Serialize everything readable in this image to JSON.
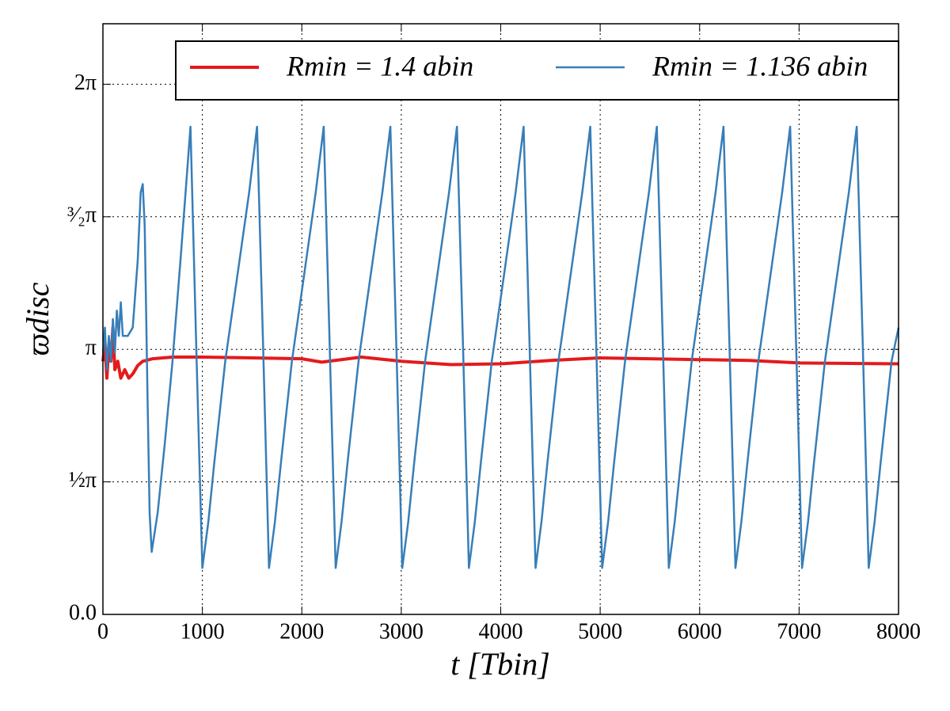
{
  "chart_data": {
    "type": "line",
    "xlabel": "t [Tbin]",
    "ylabel": "ϖdisc",
    "xlim": [
      0,
      8000
    ],
    "ylim": [
      0,
      7.0
    ],
    "xticks": [
      0,
      1000,
      2000,
      3000,
      4000,
      5000,
      6000,
      7000,
      8000
    ],
    "yticks": [
      {
        "value": 0,
        "label": "0.0"
      },
      {
        "value": 1.5708,
        "label": "½π"
      },
      {
        "value": 3.1416,
        "label": "π"
      },
      {
        "value": 4.7124,
        "label": "³⁄₂π"
      },
      {
        "value": 6.2832,
        "label": "2π"
      }
    ],
    "grid": true,
    "legend": "upper center",
    "series": [
      {
        "name": "Rmin = 1.4 abin",
        "color": "#e41a1c",
        "x": [
          0,
          20,
          40,
          60,
          80,
          100,
          120,
          150,
          180,
          220,
          260,
          300,
          350,
          400,
          500,
          700,
          1000,
          1500,
          2000,
          2200,
          2600,
          3000,
          3500,
          4000,
          4500,
          5000,
          5500,
          6000,
          6500,
          7000,
          8000
        ],
        "values": [
          3.0,
          3.2,
          2.8,
          3.2,
          3.0,
          3.4,
          2.9,
          3.0,
          2.8,
          2.9,
          2.8,
          2.85,
          2.95,
          3.0,
          3.03,
          3.05,
          3.05,
          3.04,
          3.03,
          2.99,
          3.05,
          3.0,
          2.96,
          2.97,
          3.01,
          3.04,
          3.03,
          3.02,
          3.01,
          2.98,
          2.97
        ]
      },
      {
        "name": "Rmin = 1.136 abin",
        "color": "#377eb8",
        "x": [
          0,
          20,
          40,
          60,
          80,
          100,
          120,
          140,
          160,
          180,
          200,
          250,
          300,
          350,
          380,
          400,
          420,
          450,
          470,
          490,
          550,
          620,
          700,
          780,
          850,
          880,
          940,
          1000,
          1060,
          1120,
          1230,
          1350,
          1470,
          1550,
          1610,
          1670,
          1730,
          1790,
          1900,
          2020,
          2140,
          2220,
          2280,
          2340,
          2400,
          2460,
          2570,
          2690,
          2810,
          2890,
          2950,
          3010,
          3070,
          3130,
          3240,
          3360,
          3480,
          3560,
          3620,
          3680,
          3740,
          3800,
          3910,
          4030,
          4150,
          4230,
          4290,
          4350,
          4410,
          4470,
          4580,
          4700,
          4820,
          4900,
          4960,
          5020,
          5080,
          5140,
          5250,
          5370,
          5490,
          5570,
          5630,
          5690,
          5750,
          5810,
          5920,
          6040,
          6160,
          6240,
          6300,
          6360,
          6420,
          6480,
          6590,
          6710,
          6830,
          6910,
          6970,
          7030,
          7090,
          7150,
          7260,
          7380,
          7500,
          7580,
          7640,
          7700,
          7760,
          7820,
          7930,
          8000
        ],
        "values": [
          3.1,
          3.4,
          2.9,
          3.3,
          3.0,
          3.5,
          3.1,
          3.6,
          3.3,
          3.7,
          3.3,
          3.3,
          3.4,
          4.2,
          5.0,
          5.1,
          4.6,
          2.5,
          1.2,
          0.74,
          1.2,
          2.0,
          3.0,
          4.2,
          5.3,
          5.78,
          3.1,
          0.55,
          1.1,
          1.8,
          3.0,
          4.0,
          5.0,
          5.78,
          3.2,
          0.55,
          1.1,
          1.8,
          3.0,
          4.0,
          5.0,
          5.78,
          3.2,
          0.55,
          1.1,
          1.8,
          3.0,
          4.0,
          5.0,
          5.78,
          3.2,
          0.55,
          1.1,
          1.8,
          3.0,
          4.0,
          5.0,
          5.78,
          3.2,
          0.55,
          1.1,
          1.8,
          3.0,
          4.0,
          5.0,
          5.78,
          3.2,
          0.55,
          1.1,
          1.8,
          3.0,
          4.0,
          5.0,
          5.78,
          3.2,
          0.55,
          1.1,
          1.8,
          3.0,
          4.0,
          5.0,
          5.78,
          3.2,
          0.55,
          1.1,
          1.8,
          3.0,
          4.0,
          5.0,
          5.78,
          3.2,
          0.55,
          1.1,
          1.8,
          3.0,
          4.0,
          5.0,
          5.78,
          3.2,
          0.55,
          1.1,
          1.8,
          3.0,
          4.0,
          5.0,
          5.78,
          3.2,
          0.55,
          1.1,
          1.8,
          3.0,
          3.4
        ]
      }
    ]
  }
}
